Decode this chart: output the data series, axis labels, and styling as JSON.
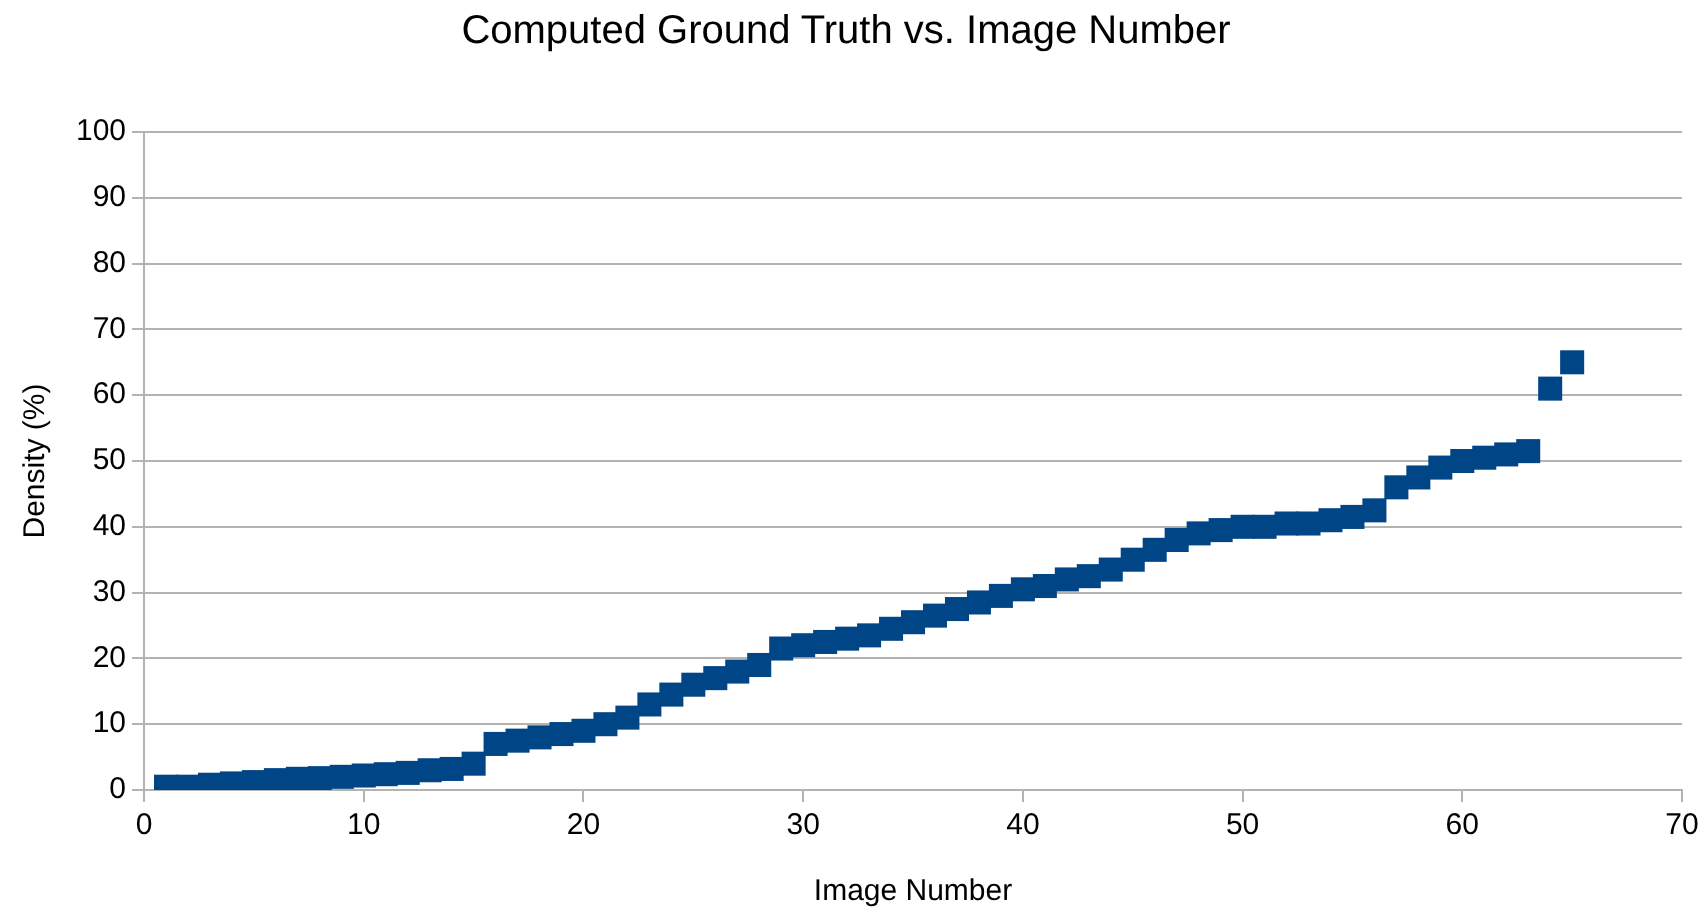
{
  "chart_data": {
    "type": "scatter",
    "title": "Computed Ground Truth vs. Image Number",
    "xlabel": "Image Number",
    "ylabel": "Density (%)",
    "x": [
      1,
      2,
      3,
      4,
      5,
      6,
      7,
      8,
      9,
      10,
      11,
      12,
      13,
      14,
      15,
      16,
      17,
      18,
      19,
      20,
      21,
      22,
      23,
      24,
      25,
      26,
      27,
      28,
      29,
      30,
      31,
      32,
      33,
      34,
      35,
      36,
      37,
      38,
      39,
      40,
      41,
      42,
      43,
      44,
      45,
      46,
      47,
      48,
      49,
      50,
      51,
      52,
      53,
      54,
      55,
      56,
      57,
      58,
      59,
      60,
      61,
      62,
      63,
      64,
      65
    ],
    "series": [
      {
        "color": "#004586",
        "values": [
          0.5,
          0.5,
          0.8,
          1,
          1.2,
          1.5,
          1.7,
          1.8,
          2,
          2.2,
          2.4,
          2.6,
          3,
          3.2,
          4,
          7,
          7.5,
          8,
          8.5,
          9,
          10,
          11,
          13,
          14.5,
          16,
          17,
          18,
          19,
          21.5,
          22,
          22.5,
          23,
          23.5,
          24.5,
          25.5,
          26.5,
          27.5,
          28.5,
          29.5,
          30.5,
          31,
          32,
          32.5,
          33.5,
          35,
          36.5,
          38,
          39,
          39.5,
          40,
          40,
          40.5,
          40.5,
          41,
          41.5,
          42.5,
          46,
          47.5,
          49,
          50,
          50.5,
          51,
          51.5,
          61,
          65
        ]
      }
    ],
    "xlim": [
      0,
      70
    ],
    "xticks": [
      0,
      10,
      20,
      30,
      40,
      50,
      60,
      70
    ],
    "ylim": [
      0,
      100
    ],
    "yticks": [
      0,
      10,
      20,
      30,
      40,
      50,
      60,
      70,
      80,
      90,
      100
    ],
    "grid": "y",
    "marker": "square",
    "legend": false
  }
}
